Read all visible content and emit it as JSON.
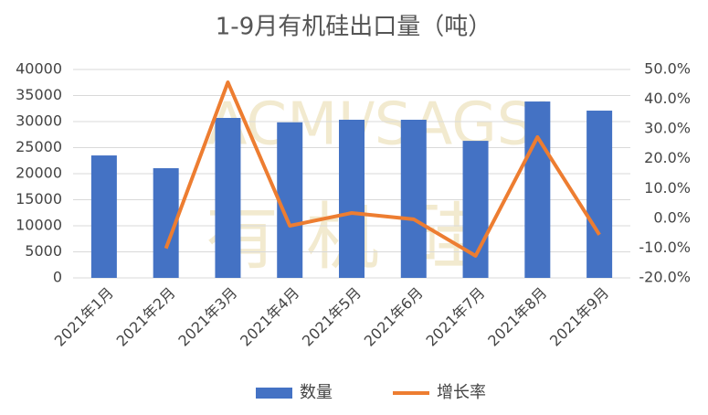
{
  "chart_data": {
    "type": "bar-line",
    "title": "1-9月有机硅出口量（吨）",
    "watermark": [
      "ACMI/SAGSI",
      "有机硅"
    ],
    "categories": [
      "2021年1月",
      "2021年2月",
      "2021年3月",
      "2021年4月",
      "2021年5月",
      "2021年6月",
      "2021年7月",
      "2021年8月",
      "2021年9月"
    ],
    "series": [
      {
        "name": "数量",
        "type": "bar",
        "color": "#4472c4",
        "axis": "y",
        "values": [
          23500,
          21050,
          30700,
          29850,
          30350,
          30350,
          26300,
          33850,
          32100
        ]
      },
      {
        "name": "增长率",
        "type": "line",
        "color": "#ed7d31",
        "axis": "y2",
        "values": [
          null,
          -10.1,
          45.7,
          -2.5,
          1.8,
          -0.3,
          -12.6,
          27.3,
          -5.5
        ]
      }
    ],
    "ylim": [
      0,
      40000
    ],
    "yticks": [
      0,
      5000,
      10000,
      15000,
      20000,
      25000,
      30000,
      35000,
      40000
    ],
    "y2lim": [
      -20,
      50
    ],
    "y2ticks": [
      {
        "value": -20,
        "label": "-20.0%"
      },
      {
        "value": -10,
        "label": "-10.0%"
      },
      {
        "value": 0,
        "label": "0.0%"
      },
      {
        "value": 10,
        "label": "10.0%"
      },
      {
        "value": 20,
        "label": "20.0%"
      },
      {
        "value": 30,
        "label": "30.0%"
      },
      {
        "value": 40,
        "label": "40.0%"
      },
      {
        "value": 50,
        "label": "50.0%"
      }
    ],
    "grid": true,
    "legend": "bottom"
  }
}
